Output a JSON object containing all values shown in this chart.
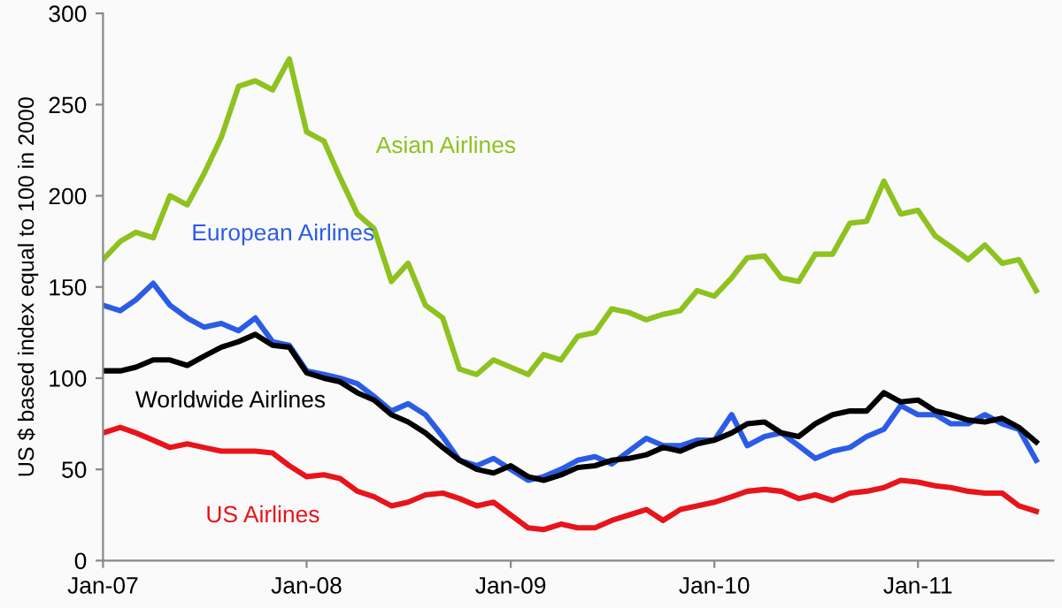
{
  "chart_data": {
    "type": "line",
    "ylabel": "US $ based index equal to 100 in 2000",
    "x": [
      "2007-01",
      "2007-02",
      "2007-03",
      "2007-04",
      "2007-05",
      "2007-06",
      "2007-07",
      "2007-08",
      "2007-09",
      "2007-10",
      "2007-11",
      "2007-12",
      "2008-01",
      "2008-02",
      "2008-03",
      "2008-04",
      "2008-05",
      "2008-06",
      "2008-07",
      "2008-08",
      "2008-09",
      "2008-10",
      "2008-11",
      "2008-12",
      "2009-01",
      "2009-02",
      "2009-03",
      "2009-04",
      "2009-05",
      "2009-06",
      "2009-07",
      "2009-08",
      "2009-09",
      "2009-10",
      "2009-11",
      "2009-12",
      "2010-01",
      "2010-02",
      "2010-03",
      "2010-04",
      "2010-05",
      "2010-06",
      "2010-07",
      "2010-08",
      "2010-09",
      "2010-10",
      "2010-11",
      "2010-12",
      "2011-01",
      "2011-02",
      "2011-03",
      "2011-04",
      "2011-05",
      "2011-06",
      "2011-07",
      "2011-08"
    ],
    "series": [
      {
        "name": "Asian Airlines",
        "color": "#8dc21f",
        "values": [
          165,
          175,
          180,
          177,
          200,
          195,
          212,
          232,
          260,
          263,
          258,
          275,
          235,
          230,
          210,
          190,
          182,
          153,
          163,
          140,
          133,
          105,
          102,
          110,
          106,
          102,
          113,
          110,
          123,
          125,
          138,
          136,
          132,
          135,
          137,
          148,
          145,
          155,
          166,
          167,
          155,
          153,
          168,
          168,
          185,
          186,
          208,
          190,
          192,
          178,
          172,
          165,
          173,
          163,
          165,
          148
        ]
      },
      {
        "name": "European Airlines",
        "color": "#2a5ce6",
        "values": [
          140,
          137,
          143,
          152,
          140,
          133,
          128,
          130,
          126,
          133,
          120,
          118,
          104,
          102,
          100,
          97,
          90,
          82,
          86,
          80,
          68,
          55,
          52,
          56,
          50,
          44,
          46,
          50,
          55,
          57,
          53,
          60,
          67,
          63,
          63,
          66,
          66,
          80,
          63,
          68,
          70,
          63,
          56,
          60,
          62,
          68,
          72,
          85,
          80,
          80,
          75,
          75,
          80,
          75,
          72,
          55
        ]
      },
      {
        "name": "Worldwide Airlines",
        "color": "#000000",
        "values": [
          104,
          104,
          106,
          110,
          110,
          107,
          112,
          117,
          120,
          124,
          118,
          117,
          103,
          100,
          98,
          92,
          88,
          80,
          76,
          70,
          62,
          55,
          50,
          48,
          52,
          46,
          44,
          47,
          51,
          52,
          55,
          56,
          58,
          62,
          60,
          64,
          66,
          70,
          75,
          76,
          70,
          68,
          75,
          80,
          82,
          82,
          92,
          87,
          88,
          82,
          80,
          77,
          76,
          78,
          73,
          65
        ]
      },
      {
        "name": "US Airlines",
        "color": "#e8141b",
        "values": [
          70,
          73,
          70,
          66,
          62,
          64,
          62,
          60,
          60,
          60,
          59,
          52,
          46,
          47,
          45,
          38,
          35,
          30,
          32,
          36,
          37,
          34,
          30,
          32,
          25,
          18,
          17,
          20,
          18,
          18,
          22,
          25,
          28,
          22,
          28,
          30,
          32,
          35,
          38,
          39,
          38,
          34,
          36,
          33,
          37,
          38,
          40,
          44,
          43,
          41,
          40,
          38,
          37,
          37,
          30,
          27
        ]
      }
    ],
    "xlim": [
      "2007-01",
      "2011-09"
    ],
    "xticks": [
      {
        "value": "2007-01",
        "label": "Jan-07"
      },
      {
        "value": "2008-01",
        "label": "Jan-08"
      },
      {
        "value": "2009-01",
        "label": "Jan-09"
      },
      {
        "value": "2010-01",
        "label": "Jan-10"
      },
      {
        "value": "2011-01",
        "label": "Jan-11"
      }
    ],
    "ylim": [
      0,
      300
    ],
    "yticks": [
      0,
      50,
      100,
      150,
      200,
      250,
      300
    ],
    "grid": false,
    "legend": false,
    "marker": "none",
    "line_style": "solid"
  }
}
